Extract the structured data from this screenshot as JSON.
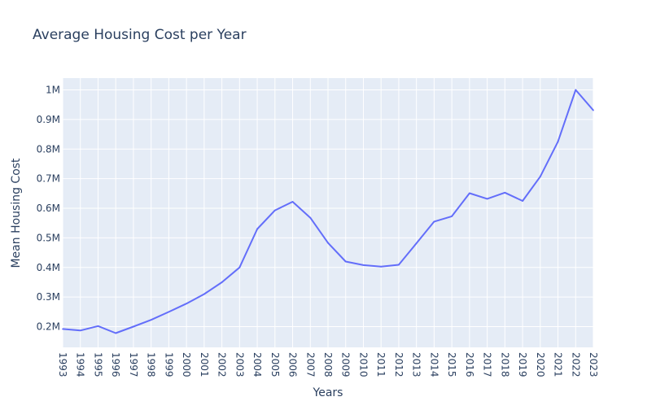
{
  "chart_data": {
    "type": "line",
    "title": "Average Housing Cost per Year",
    "xlabel": "Years",
    "ylabel": "Mean Housing Cost",
    "ylim": [
      130000,
      1040000
    ],
    "yticks": [
      200000,
      300000,
      400000,
      500000,
      600000,
      700000,
      800000,
      900000,
      1000000
    ],
    "ytick_labels": [
      "0.2M",
      "0.3M",
      "0.4M",
      "0.5M",
      "0.6M",
      "0.7M",
      "0.8M",
      "0.9M",
      "1M"
    ],
    "categories": [
      "1993",
      "1994",
      "1995",
      "1996",
      "1997",
      "1998",
      "1999",
      "2000",
      "2001",
      "2002",
      "2003",
      "2004",
      "2005",
      "2006",
      "2007",
      "2008",
      "2009",
      "2010",
      "2011",
      "2012",
      "2013",
      "2014",
      "2015",
      "2016",
      "2017",
      "2018",
      "2019",
      "2020",
      "2021",
      "2022",
      "2023"
    ],
    "series": [
      {
        "name": "Mean Housing Cost",
        "color": "#636efa",
        "values": [
          192000,
          187000,
          202000,
          178000,
          200000,
          223000,
          250000,
          278000,
          310000,
          350000,
          400000,
          530000,
          593000,
          622000,
          568000,
          483000,
          420000,
          408000,
          403000,
          409000,
          482000,
          555000,
          573000,
          651000,
          632000,
          653000,
          625000,
          707000,
          825000,
          1000000,
          931000
        ]
      }
    ],
    "plot_bgcolor": "#e5ecf6",
    "grid": true
  }
}
